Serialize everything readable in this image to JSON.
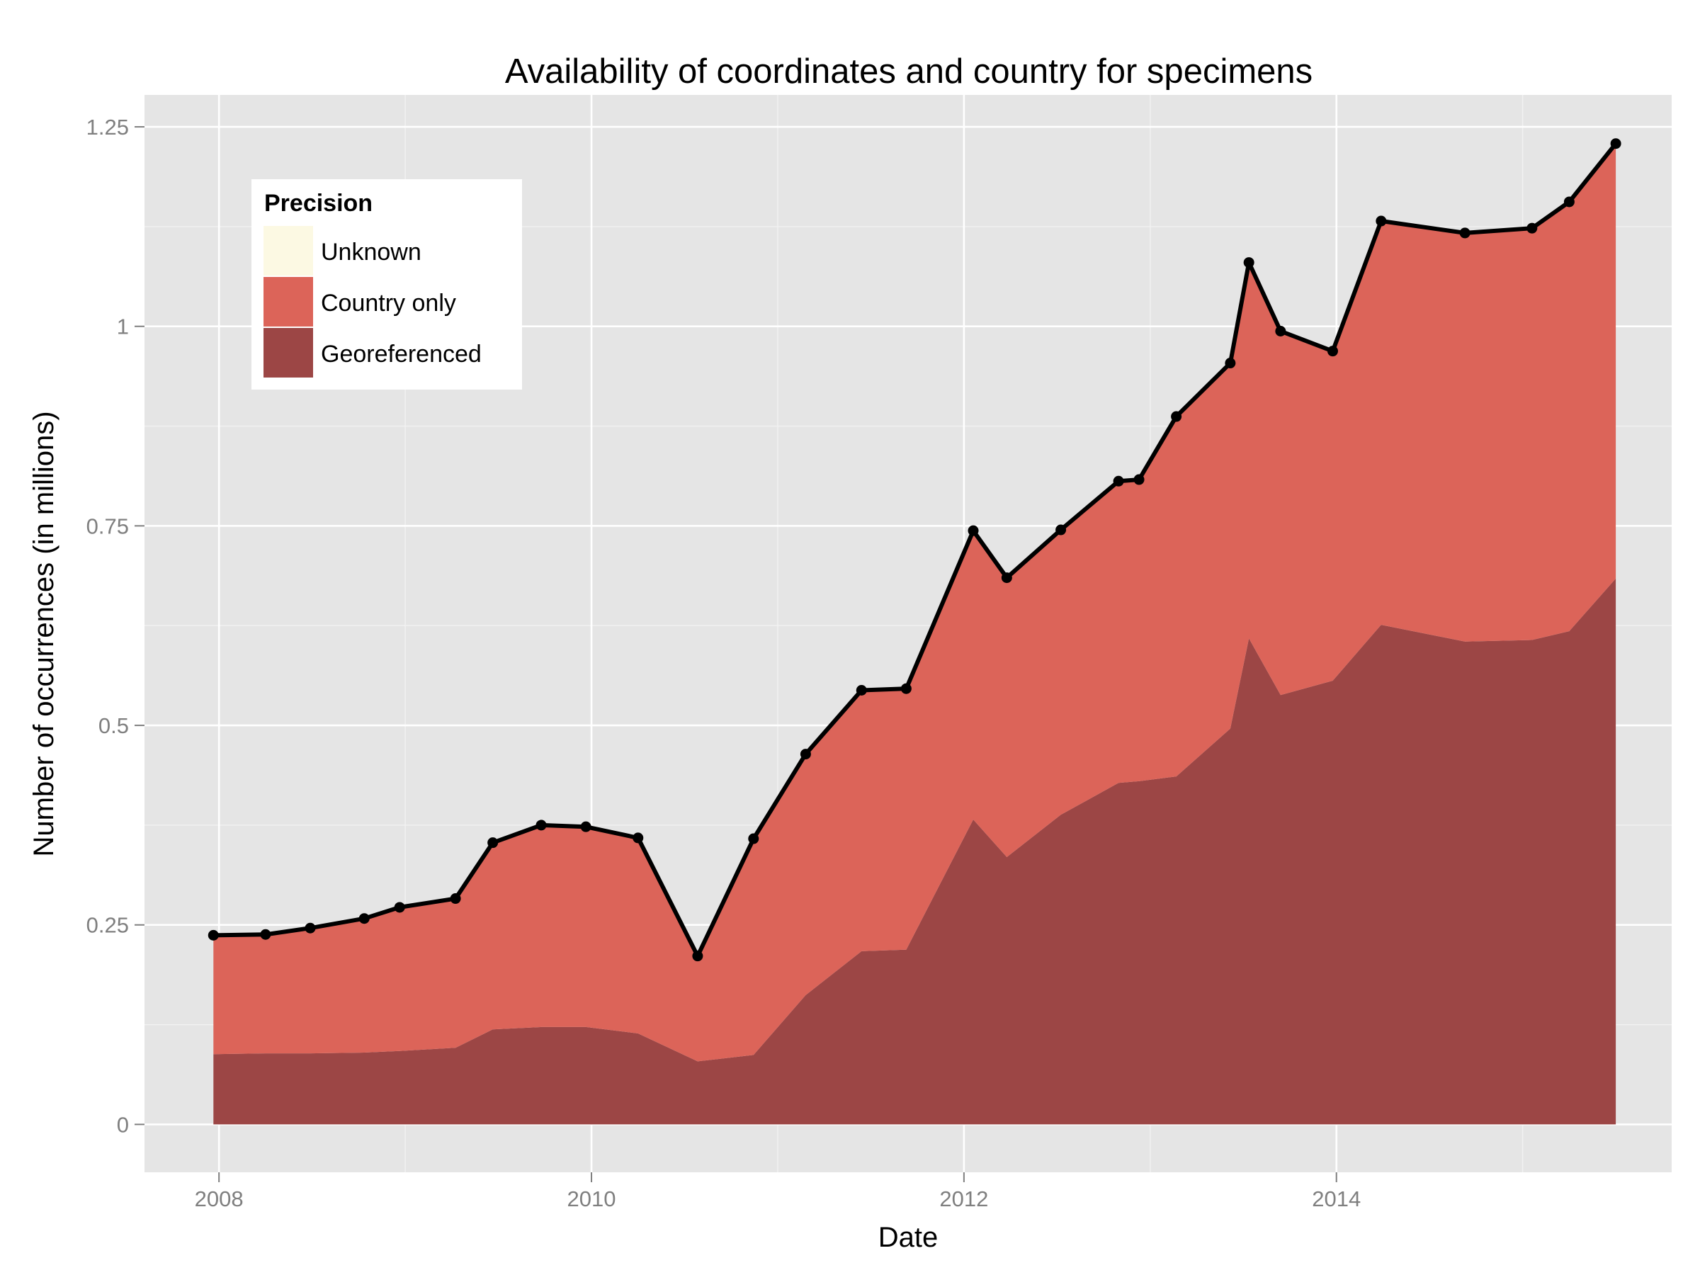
{
  "chart_data": {
    "type": "area",
    "title": "Availability of coordinates and country for specimens",
    "xlabel": "Date",
    "ylabel": "Number of occurrences (in millions)",
    "xlim": [
      2007.6,
      2015.8
    ],
    "ylim": [
      -0.06,
      1.29
    ],
    "x_ticks": [
      2008,
      2010,
      2012,
      2014
    ],
    "y_ticks": [
      0,
      0.25,
      0.5,
      0.75,
      1,
      1.25
    ],
    "y_tick_labels": [
      "0",
      "0.25",
      "0.5",
      "0.75",
      "1",
      "1.25"
    ],
    "grid": true,
    "stacked": true,
    "legend": {
      "title": "Precision",
      "position": "top-left",
      "entries": [
        {
          "name": "Unknown",
          "color": "#fcf9e3"
        },
        {
          "name": "Country only",
          "color": "#dc6459"
        },
        {
          "name": "Georeferenced",
          "color": "#9c4645"
        }
      ]
    },
    "x": [
      2007.97,
      2008.25,
      2008.49,
      2008.78,
      2008.97,
      2009.27,
      2009.47,
      2009.73,
      2009.97,
      2010.25,
      2010.57,
      2010.87,
      2011.15,
      2011.45,
      2011.69,
      2012.05,
      2012.23,
      2012.52,
      2012.83,
      2012.94,
      2013.14,
      2013.43,
      2013.53,
      2013.7,
      2013.98,
      2014.24,
      2014.69,
      2015.05,
      2015.25,
      2015.5
    ],
    "series": [
      {
        "name": "Georeferenced",
        "values": [
          0.088,
          0.089,
          0.089,
          0.09,
          0.092,
          0.096,
          0.119,
          0.122,
          0.122,
          0.114,
          0.079,
          0.087,
          0.162,
          0.217,
          0.219,
          0.382,
          0.335,
          0.388,
          0.428,
          0.43,
          0.436,
          0.496,
          0.609,
          0.538,
          0.556,
          0.626,
          0.605,
          0.607,
          0.618,
          0.684
        ]
      },
      {
        "name": "Country only",
        "values": [
          0.149,
          0.149,
          0.157,
          0.168,
          0.18,
          0.187,
          0.234,
          0.253,
          0.251,
          0.245,
          0.132,
          0.271,
          0.302,
          0.327,
          0.327,
          0.362,
          0.35,
          0.357,
          0.378,
          0.378,
          0.451,
          0.458,
          0.471,
          0.456,
          0.413,
          0.506,
          0.512,
          0.516,
          0.538,
          0.545
        ]
      },
      {
        "name": "Unknown",
        "values": [
          0,
          0,
          0,
          0,
          0,
          0,
          0,
          0,
          0,
          0,
          0,
          0,
          0,
          0,
          0,
          0,
          0,
          0,
          0,
          0,
          0,
          0,
          0,
          0,
          0,
          0,
          0,
          0,
          0,
          0
        ]
      }
    ],
    "total": [
      0.237,
      0.238,
      0.246,
      0.258,
      0.272,
      0.283,
      0.353,
      0.375,
      0.373,
      0.359,
      0.211,
      0.358,
      0.464,
      0.544,
      0.546,
      0.744,
      0.685,
      0.745,
      0.806,
      0.808,
      0.887,
      0.954,
      1.08,
      0.994,
      0.969,
      1.132,
      1.117,
      1.123,
      1.156,
      1.229
    ],
    "colors": {
      "panel": "#e5e5e5",
      "grid": "#ffffff",
      "total_line": "#000000"
    }
  }
}
